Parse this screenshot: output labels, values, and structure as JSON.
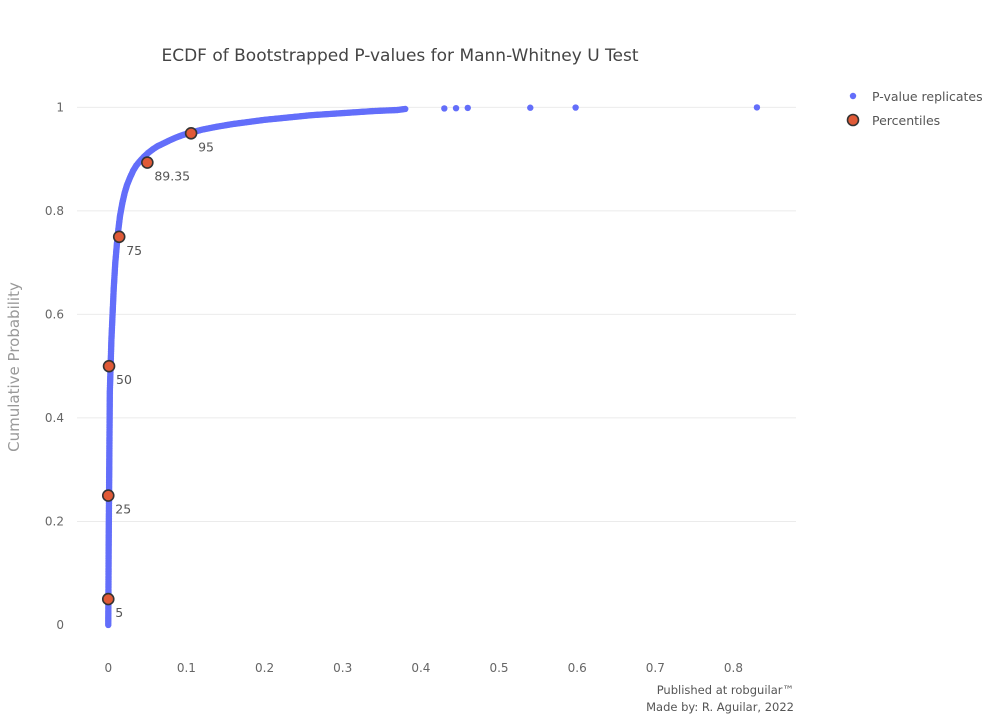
{
  "chart_data": {
    "type": "scatter",
    "title": "ECDF of Bootstrapped P-values for Mann-Whitney U Test",
    "xlabel": "",
    "ylabel": "Cumulative Probability",
    "xlim": [
      -0.04,
      0.88
    ],
    "ylim": [
      -0.06,
      1.08
    ],
    "x_ticks": [
      0,
      0.1,
      0.2,
      0.3,
      0.4,
      0.5,
      0.6,
      0.7,
      0.8
    ],
    "x_tick_labels": [
      "0",
      "0.1",
      "0.2",
      "0.3",
      "0.4",
      "0.5",
      "0.6",
      "0.7",
      "0.8"
    ],
    "y_ticks": [
      0,
      0.2,
      0.4,
      0.6,
      0.8,
      1
    ],
    "y_tick_labels": [
      "0",
      "0.2",
      "0.4",
      "0.6",
      "0.8",
      "1"
    ],
    "grid": "horizontal",
    "legend_position": "top-right",
    "colors": {
      "replicates": "#636efa",
      "percentile_fill": "#e05a37",
      "percentile_edge": "#333333"
    },
    "series": [
      {
        "name": "P-value replicates",
        "marker": "dot",
        "x": [
          0,
          0.0002,
          0.0005,
          0.001,
          0.0015,
          0.002,
          0.003,
          0.004,
          0.0055,
          0.007,
          0.009,
          0.011,
          0.013,
          0.015,
          0.018,
          0.021,
          0.024,
          0.028,
          0.032,
          0.036,
          0.041,
          0.046,
          0.051,
          0.057,
          0.063,
          0.07,
          0.078,
          0.087,
          0.096,
          0.105,
          0.12,
          0.14,
          0.16,
          0.18,
          0.2,
          0.22,
          0.24,
          0.26,
          0.28,
          0.3,
          0.32,
          0.34,
          0.37,
          0.38,
          0.43,
          0.445,
          0.46,
          0.54,
          0.598,
          0.83
        ],
        "y": [
          0.0,
          0.05,
          0.15,
          0.25,
          0.35,
          0.45,
          0.5,
          0.55,
          0.6,
          0.65,
          0.7,
          0.735,
          0.765,
          0.79,
          0.815,
          0.835,
          0.85,
          0.865,
          0.878,
          0.888,
          0.897,
          0.905,
          0.912,
          0.919,
          0.925,
          0.93,
          0.936,
          0.942,
          0.947,
          0.951,
          0.957,
          0.963,
          0.968,
          0.972,
          0.976,
          0.979,
          0.982,
          0.985,
          0.987,
          0.989,
          0.991,
          0.993,
          0.995,
          0.997,
          0.998,
          0.9985,
          0.999,
          0.9994,
          0.9997,
          1.0
        ]
      },
      {
        "name": "Percentiles",
        "marker": "circle",
        "x": [
          0,
          0,
          0.001,
          0.014,
          0.05,
          0.106
        ],
        "y": [
          0.05,
          0.25,
          0.5,
          0.75,
          0.8935,
          0.95
        ],
        "labels": [
          "5",
          "25",
          "50",
          "75",
          "89.35",
          "95"
        ]
      }
    ],
    "annotations": [
      "Published at robguilar™",
      "Made by:  R. Aguilar, 2022"
    ]
  }
}
